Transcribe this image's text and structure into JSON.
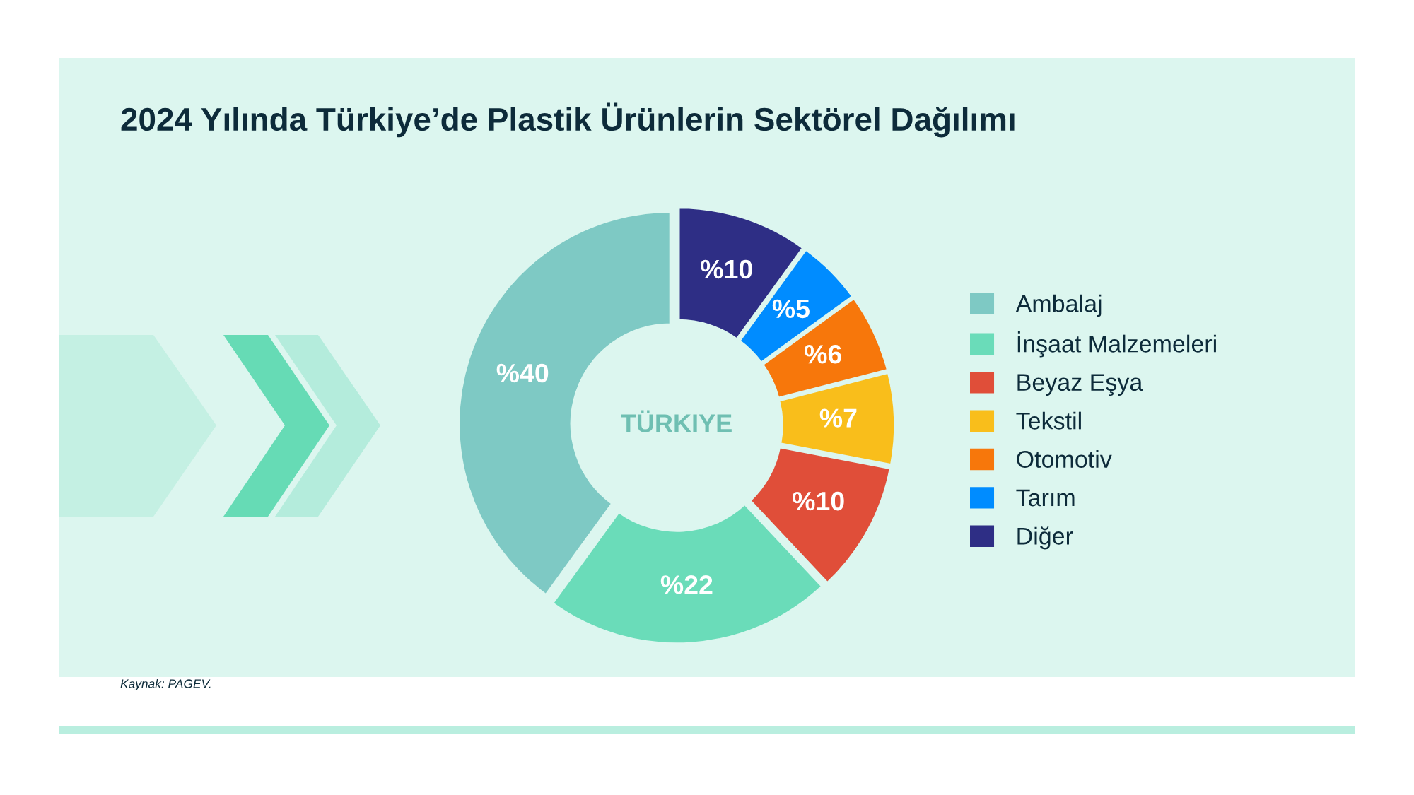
{
  "chart_data": {
    "type": "donut",
    "title": "2024 Yılında Türkiye’de Plastik Ürünlerin Sektörel Dağılımı",
    "categories": [
      "Ambalaj",
      "İnşaat Malzemeleri",
      "Beyaz Eşya",
      "Tekstil",
      "Otomotiv",
      "Tarım",
      "Diğer"
    ],
    "values": [
      40,
      22,
      10,
      7,
      6,
      5,
      10
    ],
    "colors": [
      "#7ec9c4",
      "#6adcb9",
      "#e04e39",
      "#f9be1b",
      "#f7770b",
      "#008cff",
      "#2e2e85"
    ],
    "value_labels": [
      "%40",
      "%22",
      "%10",
      "%7",
      "%6",
      "%5",
      "%10"
    ],
    "legend": "right",
    "annotations": [
      "TÜRKIYE",
      "Kaynak: PAGEV."
    ]
  }
}
